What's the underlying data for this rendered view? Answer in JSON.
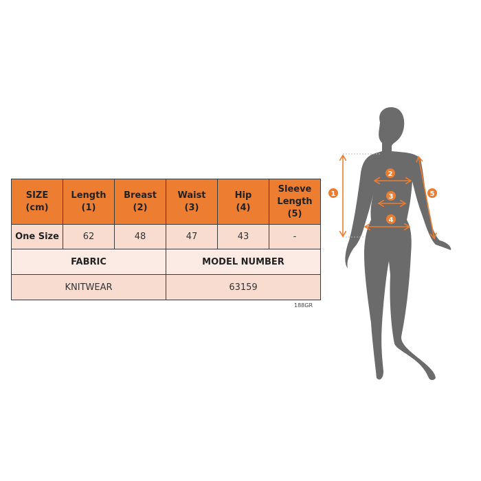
{
  "size_table": {
    "headers": [
      "SIZE\n(cm)",
      "Length\n(1)",
      "Breast\n(2)",
      "Waist\n(3)",
      "Hip\n(4)",
      "Sleeve\nLength\n(5)"
    ],
    "header_lines": [
      [
        "SIZE",
        "(cm)"
      ],
      [
        "Length",
        "(1)"
      ],
      [
        "Breast",
        "(2)"
      ],
      [
        "Waist",
        "(3)"
      ],
      [
        "Hip",
        "(4)"
      ],
      [
        "Sleeve",
        "Length",
        "(5)"
      ]
    ],
    "rows": [
      [
        "One Size",
        "62",
        "48",
        "47",
        "43",
        "-"
      ]
    ],
    "fabric_label": "FABRIC",
    "model_number_label": "MODEL NUMBER",
    "fabric_value": "KNITWEAR",
    "model_number_value": "63159"
  },
  "product_code": "188GR",
  "figure": {
    "markers": [
      "1",
      "2",
      "3",
      "4",
      "5"
    ],
    "accent_color": "#ec7d31",
    "silhouette_color": "#6b6b6b"
  }
}
